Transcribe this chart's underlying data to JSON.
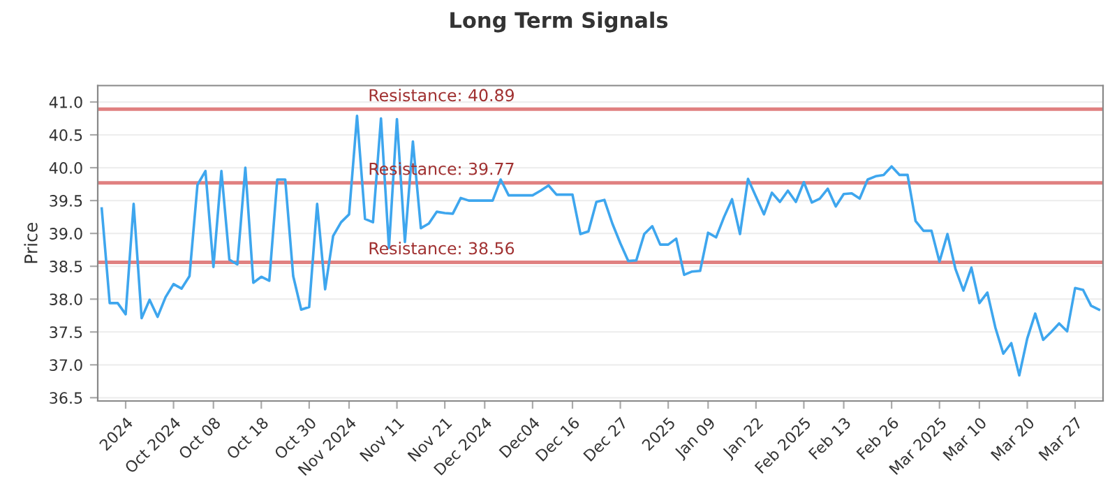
{
  "chart_data": {
    "type": "line",
    "title": "Long Term Signals",
    "ylabel": "Price",
    "categories": [
      null,
      null,
      null,
      "2024",
      null,
      null,
      null,
      null,
      null,
      "Oct 2024",
      null,
      null,
      null,
      null,
      "Oct 08",
      null,
      null,
      null,
      null,
      null,
      "Oct 18",
      null,
      null,
      null,
      null,
      null,
      "Oct 30",
      null,
      null,
      null,
      null,
      "Nov 2024",
      null,
      null,
      null,
      null,
      null,
      "Nov 11",
      null,
      null,
      null,
      null,
      null,
      "Nov 21",
      null,
      null,
      null,
      null,
      "Dec 2024",
      null,
      null,
      null,
      null,
      null,
      "Dec04",
      null,
      null,
      null,
      null,
      "Dec 16",
      null,
      null,
      null,
      null,
      null,
      "Dec 27",
      null,
      null,
      null,
      null,
      null,
      "2025",
      null,
      null,
      null,
      null,
      "Jan 09",
      null,
      null,
      null,
      null,
      null,
      "Jan 22",
      null,
      null,
      null,
      null,
      null,
      "Feb 2025",
      null,
      null,
      null,
      null,
      "Feb 13",
      null,
      null,
      null,
      null,
      null,
      "Feb 26",
      null,
      null,
      null,
      null,
      null,
      "Mar 2025",
      null,
      null,
      null,
      null,
      "Mar 10",
      null,
      null,
      null,
      null,
      null,
      "Mar 20",
      null,
      null,
      null,
      null,
      null,
      "Mar 27",
      null,
      null,
      null
    ],
    "series": [
      {
        "color": "#3ea6ee",
        "values": [
          39.38,
          37.94,
          37.94,
          37.77,
          39.45,
          37.71,
          37.99,
          37.73,
          38.03,
          38.23,
          38.16,
          38.35,
          39.74,
          39.95,
          38.49,
          39.95,
          38.6,
          38.53,
          40.0,
          38.25,
          38.34,
          38.28,
          39.82,
          39.82,
          38.35,
          37.84,
          37.88,
          39.45,
          38.15,
          38.96,
          39.17,
          39.29,
          40.79,
          39.22,
          39.17,
          40.75,
          38.78,
          40.74,
          38.87,
          40.4,
          39.08,
          39.15,
          39.33,
          39.31,
          39.3,
          39.54,
          39.5,
          39.5,
          39.5,
          39.5,
          39.82,
          39.58,
          39.58,
          39.58,
          39.58,
          39.65,
          39.73,
          39.59,
          39.59,
          39.59,
          38.99,
          39.03,
          39.48,
          39.51,
          39.15,
          38.85,
          38.58,
          38.59,
          38.99,
          39.11,
          38.83,
          38.83,
          38.92,
          38.37,
          38.42,
          38.43,
          39.01,
          38.94,
          39.25,
          39.52,
          38.99,
          39.83,
          39.56,
          39.29,
          39.62,
          39.48,
          39.65,
          39.48,
          39.78,
          39.47,
          39.53,
          39.68,
          39.41,
          39.6,
          39.61,
          39.53,
          39.82,
          39.87,
          39.89,
          40.02,
          39.89,
          39.89,
          39.19,
          39.04,
          39.04,
          38.57,
          38.99,
          38.46,
          38.13,
          38.48,
          37.94,
          38.1,
          37.57,
          37.17,
          37.33,
          36.84,
          37.4,
          37.78,
          37.38,
          37.5,
          37.63,
          37.51,
          38.17,
          38.14,
          37.9,
          37.84
        ]
      }
    ],
    "ylim": [
      36.45,
      41.25
    ],
    "yticks": [
      36.5,
      {
        "value": 37,
        "label": "37.0"
      },
      37.5,
      {
        "value": 38,
        "label": "38.0"
      },
      38.5,
      {
        "value": 39,
        "label": "39.0"
      },
      39.5,
      {
        "value": 40,
        "label": "40.0"
      },
      40.5,
      {
        "value": 41,
        "label": "41.0"
      }
    ],
    "grid": "y",
    "ref_lines": [
      {
        "axis": "y",
        "value": 40.89,
        "label": "Resistance: 40.89",
        "color": "#e08080"
      },
      {
        "axis": "y",
        "value": 39.77,
        "label": "Resistance: 39.77",
        "color": "#e08080"
      },
      {
        "axis": "y",
        "value": 38.56,
        "label": "Resistance: 38.56",
        "color": "#e08080"
      }
    ]
  }
}
